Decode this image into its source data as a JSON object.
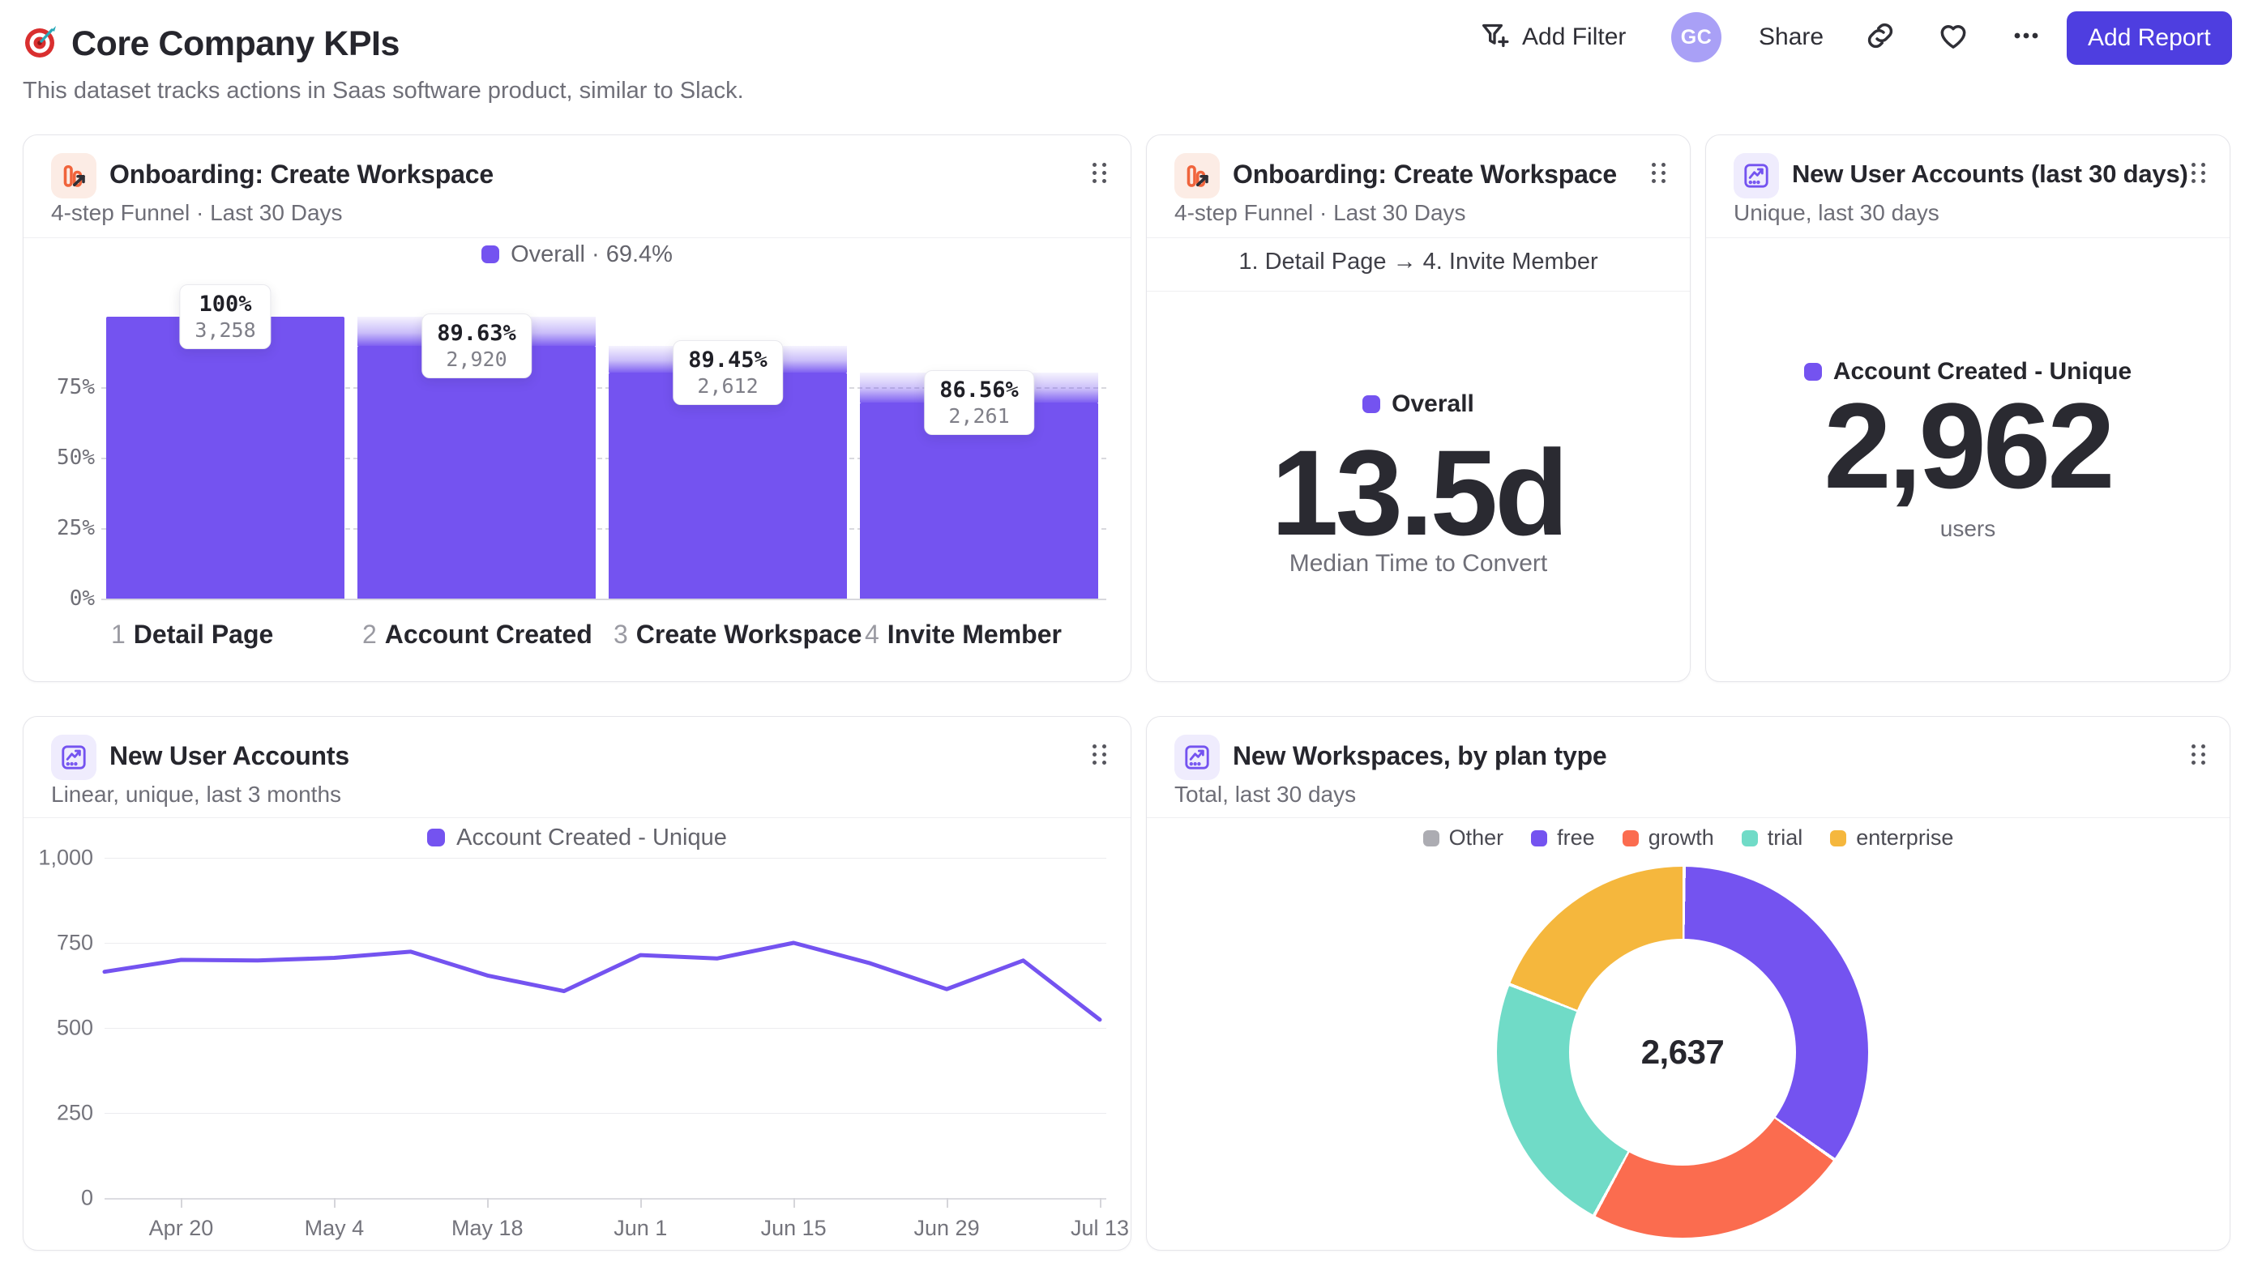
{
  "header": {
    "title": "Core Company KPIs",
    "subtitle": "This dataset tracks actions in Saas software product, similar to Slack.",
    "actions": {
      "add_filter": "Add Filter",
      "avatar_initials": "GC",
      "share": "Share",
      "add_report": "Add Report"
    }
  },
  "cards": [
    {
      "title": "Onboarding: Create Workspace",
      "subtitle": "4-step Funnel · Last 30 Days",
      "icon": "funnel-report-icon"
    },
    {
      "title": "Onboarding: Create Workspace",
      "subtitle": "4-step Funnel · Last 30 Days",
      "icon": "funnel-report-icon",
      "range_label": "1. Detail Page → 4. Invite Member"
    },
    {
      "title": "New User Accounts (last 30 days)",
      "subtitle": "Unique, last 30 days",
      "icon": "insights-report-icon"
    },
    {
      "title": "New User Accounts",
      "subtitle": "Linear, unique, last 3 months",
      "icon": "insights-report-icon"
    },
    {
      "title": "New Workspaces, by plan type",
      "subtitle": "Total, last 30 days",
      "icon": "insights-report-icon"
    }
  ],
  "chart_data": [
    {
      "type": "bar",
      "subtype": "funnel",
      "title": "Onboarding: Create Workspace",
      "legend": "Overall · 69.4%",
      "categories": [
        "Detail Page",
        "Account Created",
        "Create Workspace",
        "Invite Member"
      ],
      "step_numbers": [
        "1",
        "2",
        "3",
        "4"
      ],
      "step_conversion_pct": [
        "100%",
        "89.63%",
        "89.45%",
        "86.56%"
      ],
      "counts": [
        3258,
        2920,
        2612,
        2261
      ],
      "counts_formatted": [
        "3,258",
        "2,920",
        "2,612",
        "2,261"
      ],
      "cumulative_pct": [
        100,
        89.63,
        80.18,
        69.4
      ],
      "overall_conversion": "69.4%",
      "y_ticks": [
        "75%",
        "50%",
        "25%",
        "0%"
      ],
      "ylim": [
        0,
        100
      ],
      "bar_color": "#7453f0",
      "grid": "dashed"
    },
    {
      "type": "metric",
      "legend": "Overall",
      "value": "13.5d",
      "label": "Median Time to Convert",
      "accent_color": "#7453f0"
    },
    {
      "type": "metric",
      "legend": "Account Created - Unique",
      "value": "2,962",
      "label": "users",
      "accent_color": "#7453f0"
    },
    {
      "type": "line",
      "legend": "Account Created - Unique",
      "x": [
        "Apr 13",
        "Apr 20",
        "Apr 27",
        "May 4",
        "May 11",
        "May 18",
        "May 25",
        "Jun 1",
        "Jun 8",
        "Jun 15",
        "Jun 22",
        "Jun 29",
        "Jul 6",
        "Jul 13"
      ],
      "values": [
        665,
        700,
        698,
        706,
        724,
        654,
        608,
        714,
        704,
        750,
        690,
        614,
        698,
        524
      ],
      "x_tick_labels": [
        "Apr 20",
        "May 4",
        "May 18",
        "Jun 1",
        "Jun 15",
        "Jun 29",
        "Jul 13"
      ],
      "y_ticks": [
        "1,000",
        "750",
        "500",
        "250",
        "0"
      ],
      "ylim": [
        0,
        1000
      ],
      "line_color": "#7453f0",
      "grid": true,
      "legend_position": "top"
    },
    {
      "type": "pie",
      "subtype": "donut",
      "total_label": "2,637",
      "total": 2637,
      "segments": [
        {
          "label": "Other",
          "value": 0,
          "color": "#acacb2"
        },
        {
          "label": "free",
          "value": 914,
          "color": "#7453f0"
        },
        {
          "label": "growth",
          "value": 609,
          "color": "#fb6c4f"
        },
        {
          "label": "trial",
          "value": 608,
          "color": "#70dbc7"
        },
        {
          "label": "enterprise",
          "value": 506,
          "color": "#f5b73d"
        }
      ],
      "legend_position": "top"
    }
  ]
}
